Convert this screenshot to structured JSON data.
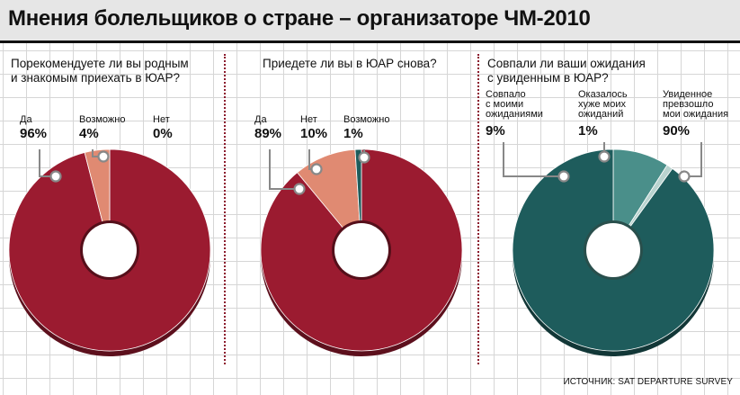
{
  "title": "Мнения болельщиков о стране – организаторе ЧМ-2010",
  "source": "ИСТОЧНИК: SAT DEPARTURE SURVEY",
  "chart_data": [
    {
      "type": "pie",
      "title": "Порекомендуете ли вы родным и знакомым приехать в ЮАР?",
      "title_lines": [
        "Порекомендуете ли вы родным",
        "и знакомым приехать в ЮАР?"
      ],
      "slices": [
        {
          "label": "Да",
          "label_lines": [
            "Да"
          ],
          "value": 96,
          "value_text": "96%",
          "color": "#9b1b30"
        },
        {
          "label": "Возможно",
          "label_lines": [
            "Возможно"
          ],
          "value": 4,
          "value_text": "4%",
          "color": "#e08a72"
        },
        {
          "label": "Нет",
          "label_lines": [
            "Нет"
          ],
          "value": 0,
          "value_text": "0%",
          "color": "#1e5c5c"
        }
      ]
    },
    {
      "type": "pie",
      "title": "Приедете ли вы в ЮАР снова?",
      "title_lines": [
        "Приедете ли вы в ЮАР снова?"
      ],
      "slices": [
        {
          "label": "Да",
          "label_lines": [
            "Да"
          ],
          "value": 89,
          "value_text": "89%",
          "color": "#9b1b30"
        },
        {
          "label": "Нет",
          "label_lines": [
            "Нет"
          ],
          "value": 10,
          "value_text": "10%",
          "color": "#e08a72"
        },
        {
          "label": "Возможно",
          "label_lines": [
            "Возможно"
          ],
          "value": 1,
          "value_text": "1%",
          "color": "#1e5c5c"
        }
      ]
    },
    {
      "type": "pie",
      "title": "Совпали ли ваши ожидания с увиденным в ЮАР?",
      "title_lines": [
        "Совпали ли ваши ожидания",
        "с увиденным в ЮАР?"
      ],
      "slices": [
        {
          "label": "Совпало с моими ожиданиями",
          "label_lines": [
            "Совпало",
            "с моими",
            "ожиданиями"
          ],
          "value": 9,
          "value_text": "9%",
          "color": "#4a8f8a"
        },
        {
          "label": "Оказалось хуже моих ожиданий",
          "label_lines": [
            "Оказалось",
            "хуже моих",
            "ожиданий"
          ],
          "value": 1,
          "value_text": "1%",
          "color": "#b9d3cf"
        },
        {
          "label": "Увиденное превзошло мои ожидания",
          "label_lines": [
            "Увиденное",
            "превзошло",
            "мои ожидания"
          ],
          "value": 90,
          "value_text": "90%",
          "color": "#1e5c5c"
        }
      ]
    }
  ]
}
